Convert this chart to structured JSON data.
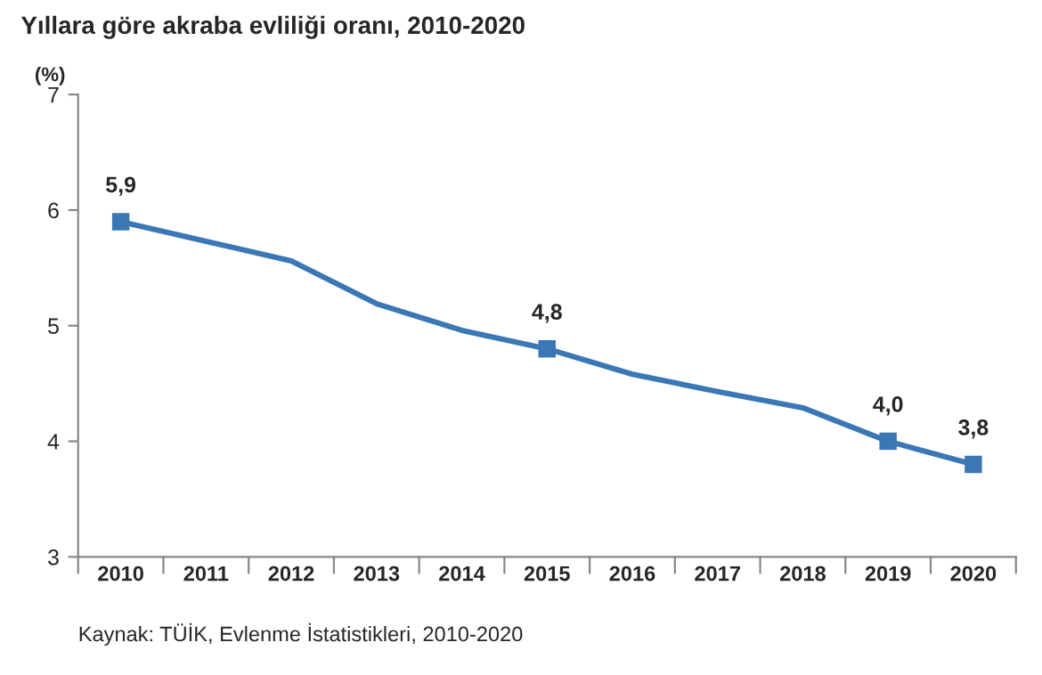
{
  "chart_data": {
    "type": "line",
    "title": "Yıllara göre akraba evliliği oranı, 2010-2020",
    "ylabel": "(%)",
    "categories": [
      "2010",
      "2011",
      "2012",
      "2013",
      "2014",
      "2015",
      "2016",
      "2017",
      "2018",
      "2019",
      "2020"
    ],
    "series": [
      {
        "color": "#3b77b5",
        "values": [
          5.9,
          5.73,
          5.56,
          5.19,
          4.96,
          4.8,
          4.58,
          4.43,
          4.29,
          4.0,
          3.8
        ],
        "value_labels": [
          "5,9",
          null,
          null,
          null,
          null,
          "4,8",
          null,
          null,
          null,
          "4,0",
          "3,8"
        ]
      }
    ],
    "ylim": [
      3,
      7
    ],
    "yticks": [
      3,
      4,
      5,
      6,
      7
    ],
    "grid": false,
    "line_style": "solid",
    "annotations": [
      "Kaynak: TÜİK, Evlenme İstatistikleri, 2010-2020"
    ]
  }
}
